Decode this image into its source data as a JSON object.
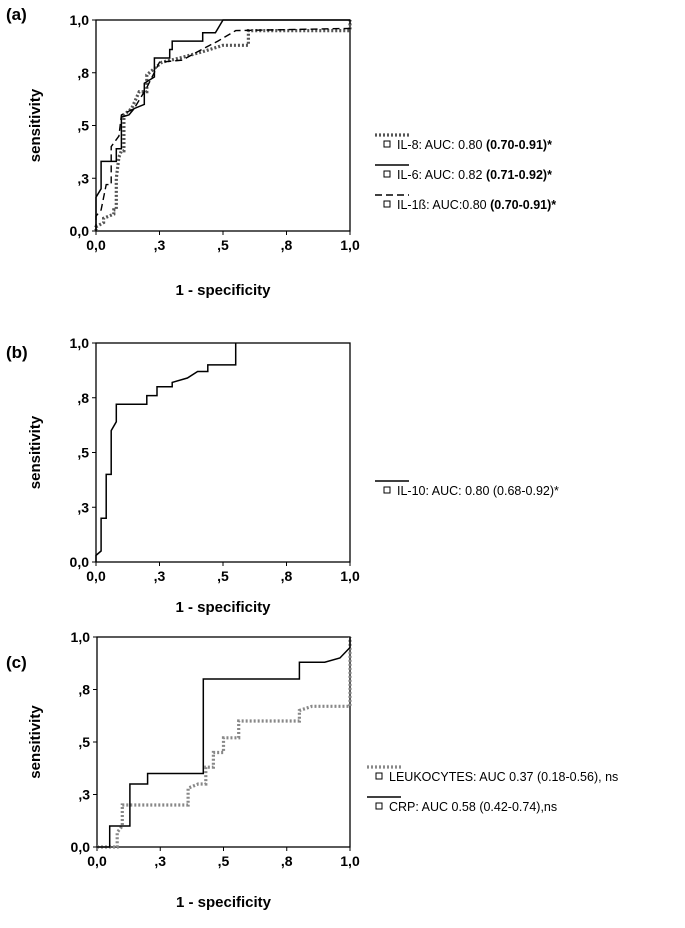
{
  "chart_data": [
    {
      "type": "line",
      "panel_label": "(a)",
      "xlabel": "1 - specificity",
      "ylabel": "sensitivity",
      "xlim": [
        0,
        1
      ],
      "ylim": [
        0,
        1
      ],
      "x_ticks": [
        {
          "v": 0.0,
          "label": "0,0"
        },
        {
          "v": 0.25,
          "label": ",3"
        },
        {
          "v": 0.5,
          "label": ",5"
        },
        {
          "v": 0.75,
          "label": ",8"
        },
        {
          "v": 1.0,
          "label": "1,0"
        }
      ],
      "y_ticks": [
        {
          "v": 0.0,
          "label": "0,0"
        },
        {
          "v": 0.25,
          "label": ",3"
        },
        {
          "v": 0.5,
          "label": ",5"
        },
        {
          "v": 0.75,
          "label": ",8"
        },
        {
          "v": 1.0,
          "label": "1,0"
        }
      ],
      "series": [
        {
          "name": "IL-8: AUC: 0.80 (0.70-0.91)*",
          "legend_plain": "IL-8: AUC: 0.80 ",
          "legend_bold": "(0.70-0.91)*",
          "style": "dotted",
          "color": "#555555",
          "points": [
            [
              0,
              0
            ],
            [
              0,
              0.02
            ],
            [
              0.03,
              0.04
            ],
            [
              0.03,
              0.06
            ],
            [
              0.07,
              0.08
            ],
            [
              0.07,
              0.1
            ],
            [
              0.08,
              0.1
            ],
            [
              0.08,
              0.25
            ],
            [
              0.09,
              0.35
            ],
            [
              0.1,
              0.38
            ],
            [
              0.11,
              0.38
            ],
            [
              0.11,
              0.55
            ],
            [
              0.14,
              0.58
            ],
            [
              0.17,
              0.66
            ],
            [
              0.2,
              0.66
            ],
            [
              0.2,
              0.74
            ],
            [
              0.23,
              0.77
            ],
            [
              0.26,
              0.8
            ],
            [
              0.33,
              0.82
            ],
            [
              0.42,
              0.85
            ],
            [
              0.5,
              0.88
            ],
            [
              0.56,
              0.88
            ],
            [
              0.6,
              0.88
            ],
            [
              0.6,
              0.95
            ],
            [
              1.0,
              0.95
            ],
            [
              1.0,
              1.0
            ]
          ]
        },
        {
          "name": "IL-6: AUC: 0.82 (0.71-0.92)*",
          "legend_plain": "IL-6: AUC: 0.82 ",
          "legend_bold": "(0.71-0.92)*",
          "style": "solid",
          "color": "#000000",
          "points": [
            [
              0,
              0
            ],
            [
              0,
              0.16
            ],
            [
              0.02,
              0.2
            ],
            [
              0.02,
              0.33
            ],
            [
              0.08,
              0.33
            ],
            [
              0.08,
              0.39
            ],
            [
              0.1,
              0.39
            ],
            [
              0.1,
              0.54
            ],
            [
              0.13,
              0.55
            ],
            [
              0.15,
              0.58
            ],
            [
              0.19,
              0.6
            ],
            [
              0.19,
              0.7
            ],
            [
              0.23,
              0.73
            ],
            [
              0.23,
              0.82
            ],
            [
              0.29,
              0.82
            ],
            [
              0.29,
              0.86
            ],
            [
              0.3,
              0.86
            ],
            [
              0.3,
              0.9
            ],
            [
              0.42,
              0.9
            ],
            [
              0.42,
              0.94
            ],
            [
              0.47,
              0.94
            ],
            [
              0.5,
              1.0
            ],
            [
              1.0,
              1.0
            ]
          ]
        },
        {
          "name": "IL-1ß: AUC:0.80 (0.70-0.91)*",
          "legend_plain": "IL-1ß: AUC:0.80 ",
          "legend_bold": "(0.70-0.91)*",
          "style": "dashed",
          "color": "#000000",
          "points": [
            [
              0,
              0
            ],
            [
              0,
              0.07
            ],
            [
              0.02,
              0.1
            ],
            [
              0.04,
              0.22
            ],
            [
              0.06,
              0.22
            ],
            [
              0.06,
              0.4
            ],
            [
              0.09,
              0.45
            ],
            [
              0.1,
              0.55
            ],
            [
              0.15,
              0.58
            ],
            [
              0.2,
              0.68
            ],
            [
              0.25,
              0.8
            ],
            [
              0.34,
              0.81
            ],
            [
              0.4,
              0.85
            ],
            [
              0.48,
              0.9
            ],
            [
              0.55,
              0.95
            ],
            [
              1.0,
              0.96
            ],
            [
              1.0,
              1.0
            ]
          ]
        }
      ]
    },
    {
      "type": "line",
      "panel_label": "(b)",
      "xlabel": "1 - specificity",
      "ylabel": "sensitivity",
      "xlim": [
        0,
        1
      ],
      "ylim": [
        0,
        1
      ],
      "x_ticks": [
        {
          "v": 0.0,
          "label": "0,0"
        },
        {
          "v": 0.25,
          "label": ",3"
        },
        {
          "v": 0.5,
          "label": ",5"
        },
        {
          "v": 0.75,
          "label": ",8"
        },
        {
          "v": 1.0,
          "label": "1,0"
        }
      ],
      "y_ticks": [
        {
          "v": 0.0,
          "label": "0,0"
        },
        {
          "v": 0.25,
          "label": ",3"
        },
        {
          "v": 0.5,
          "label": ",5"
        },
        {
          "v": 0.75,
          "label": ",8"
        },
        {
          "v": 1.0,
          "label": "1,0"
        }
      ],
      "series": [
        {
          "name": "IL-10: AUC: 0.80 (0.68-0.92)*",
          "legend_plain": "IL-10: AUC: 0.80 (0.68-0.92)*",
          "legend_bold": "",
          "style": "solid",
          "color": "#000000",
          "points": [
            [
              0,
              0
            ],
            [
              0,
              0.03
            ],
            [
              0.02,
              0.05
            ],
            [
              0.02,
              0.2
            ],
            [
              0.04,
              0.2
            ],
            [
              0.04,
              0.4
            ],
            [
              0.06,
              0.4
            ],
            [
              0.06,
              0.6
            ],
            [
              0.08,
              0.64
            ],
            [
              0.08,
              0.72
            ],
            [
              0.2,
              0.72
            ],
            [
              0.2,
              0.76
            ],
            [
              0.24,
              0.76
            ],
            [
              0.24,
              0.8
            ],
            [
              0.3,
              0.8
            ],
            [
              0.3,
              0.82
            ],
            [
              0.36,
              0.84
            ],
            [
              0.4,
              0.87
            ],
            [
              0.44,
              0.87
            ],
            [
              0.44,
              0.9
            ],
            [
              0.55,
              0.9
            ],
            [
              0.55,
              1.0
            ]
          ]
        }
      ]
    },
    {
      "type": "line",
      "panel_label": "(c)",
      "xlabel": "1 - specificity",
      "ylabel": "sensitivity",
      "xlim": [
        0,
        1
      ],
      "ylim": [
        0,
        1
      ],
      "x_ticks": [
        {
          "v": 0.0,
          "label": "0,0"
        },
        {
          "v": 0.25,
          "label": ",3"
        },
        {
          "v": 0.5,
          "label": ",5"
        },
        {
          "v": 0.75,
          "label": ",8"
        },
        {
          "v": 1.0,
          "label": "1,0"
        }
      ],
      "y_ticks": [
        {
          "v": 0.0,
          "label": "0,0"
        },
        {
          "v": 0.25,
          "label": ",3"
        },
        {
          "v": 0.5,
          "label": ",5"
        },
        {
          "v": 0.75,
          "label": ",8"
        },
        {
          "v": 1.0,
          "label": "1,0"
        }
      ],
      "series": [
        {
          "name": "LEUKOCYTES: AUC 0.37 (0.18-0.56), ns",
          "legend_plain": "LEUKOCYTES: AUC 0.37 (0.18-0.56), ns",
          "legend_bold": "",
          "style": "dotted",
          "color": "#888888",
          "points": [
            [
              0,
              0
            ],
            [
              0.08,
              0
            ],
            [
              0.08,
              0.07
            ],
            [
              0.1,
              0.1
            ],
            [
              0.1,
              0.2
            ],
            [
              0.36,
              0.2
            ],
            [
              0.36,
              0.28
            ],
            [
              0.4,
              0.3
            ],
            [
              0.43,
              0.3
            ],
            [
              0.43,
              0.38
            ],
            [
              0.46,
              0.38
            ],
            [
              0.46,
              0.45
            ],
            [
              0.5,
              0.45
            ],
            [
              0.5,
              0.52
            ],
            [
              0.56,
              0.52
            ],
            [
              0.56,
              0.6
            ],
            [
              0.8,
              0.6
            ],
            [
              0.8,
              0.65
            ],
            [
              0.85,
              0.67
            ],
            [
              1.0,
              0.67
            ],
            [
              1.0,
              1.0
            ]
          ]
        },
        {
          "name": "CRP: AUC 0.58 (0.42-0.74),ns",
          "legend_plain": "CRP: AUC 0.58 (0.42-0.74),ns",
          "legend_bold": "",
          "style": "solid",
          "color": "#000000",
          "points": [
            [
              0,
              0
            ],
            [
              0.05,
              0
            ],
            [
              0.05,
              0.1
            ],
            [
              0.13,
              0.1
            ],
            [
              0.13,
              0.3
            ],
            [
              0.2,
              0.3
            ],
            [
              0.2,
              0.35
            ],
            [
              0.42,
              0.35
            ],
            [
              0.42,
              0.8
            ],
            [
              0.8,
              0.8
            ],
            [
              0.8,
              0.88
            ],
            [
              0.9,
              0.88
            ],
            [
              0.96,
              0.9
            ],
            [
              1.0,
              0.95
            ],
            [
              1.0,
              1.0
            ]
          ]
        }
      ]
    }
  ]
}
